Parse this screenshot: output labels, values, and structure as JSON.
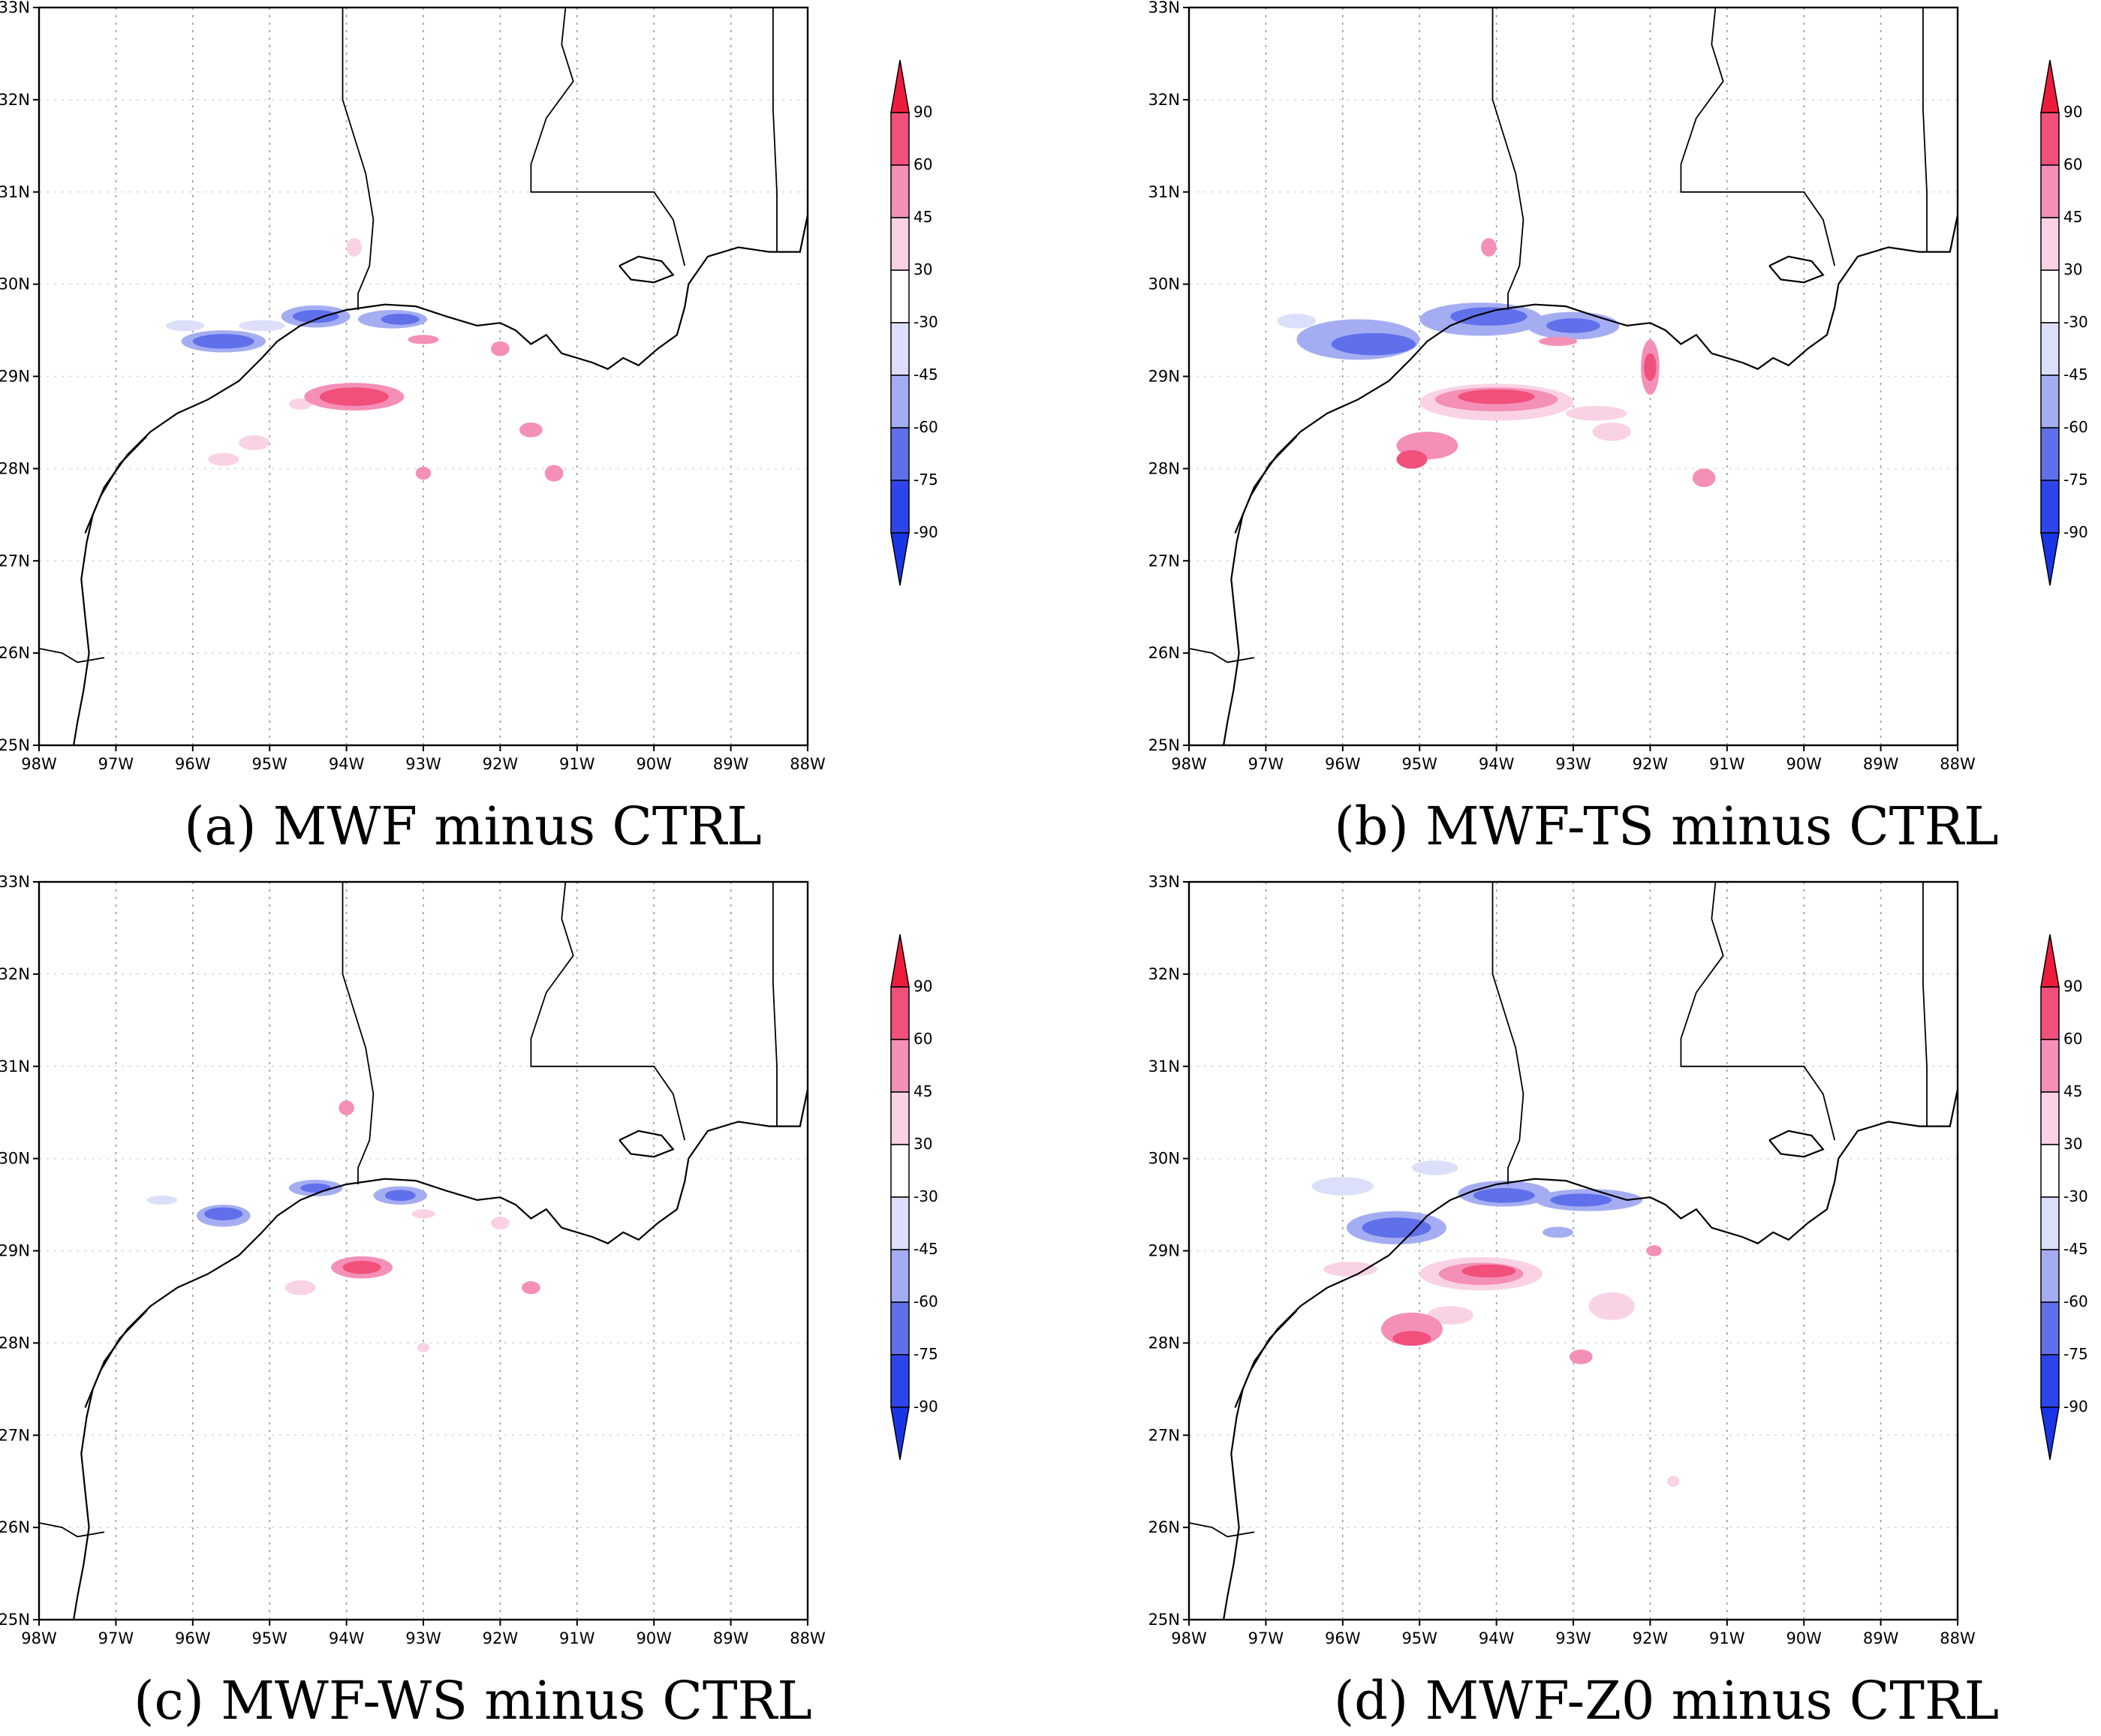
{
  "lat_ticks": [
    "25N",
    "26N",
    "27N",
    "28N",
    "29N",
    "30N",
    "31N",
    "32N",
    "33N"
  ],
  "lon_ticks": [
    "98W",
    "97W",
    "96W",
    "95W",
    "94W",
    "93W",
    "92W",
    "91W",
    "90W",
    "89W",
    "88W"
  ],
  "colorbar": {
    "labels": [
      "90",
      "60",
      "45",
      "30",
      "-30",
      "-45",
      "-60",
      "-75",
      "-90"
    ],
    "colors": [
      "#ee1c3c",
      "#f0507a",
      "#f48fb8",
      "#f9d2e6",
      "#ffffff",
      "#dcdff9",
      "#a5adf2",
      "#6070eb",
      "#2d45ea",
      "#1a35e6"
    ]
  },
  "colors": {
    "pos": [
      "#f9d2e6",
      "#f48fb8",
      "#f0507a",
      "#ee1c3c"
    ],
    "neg": [
      "#dcdff9",
      "#a5adf2",
      "#6070eb",
      "#2d45ea"
    ]
  },
  "panels": [
    {
      "id": "a",
      "caption": "(a) MWF minus CTRL"
    },
    {
      "id": "b",
      "caption": "(b) MWF-TS minus CTRL"
    },
    {
      "id": "c",
      "caption": "(c) MWF-WS minus CTRL"
    },
    {
      "id": "d",
      "caption": "(d) MWF-Z0 minus CTRL"
    }
  ]
}
